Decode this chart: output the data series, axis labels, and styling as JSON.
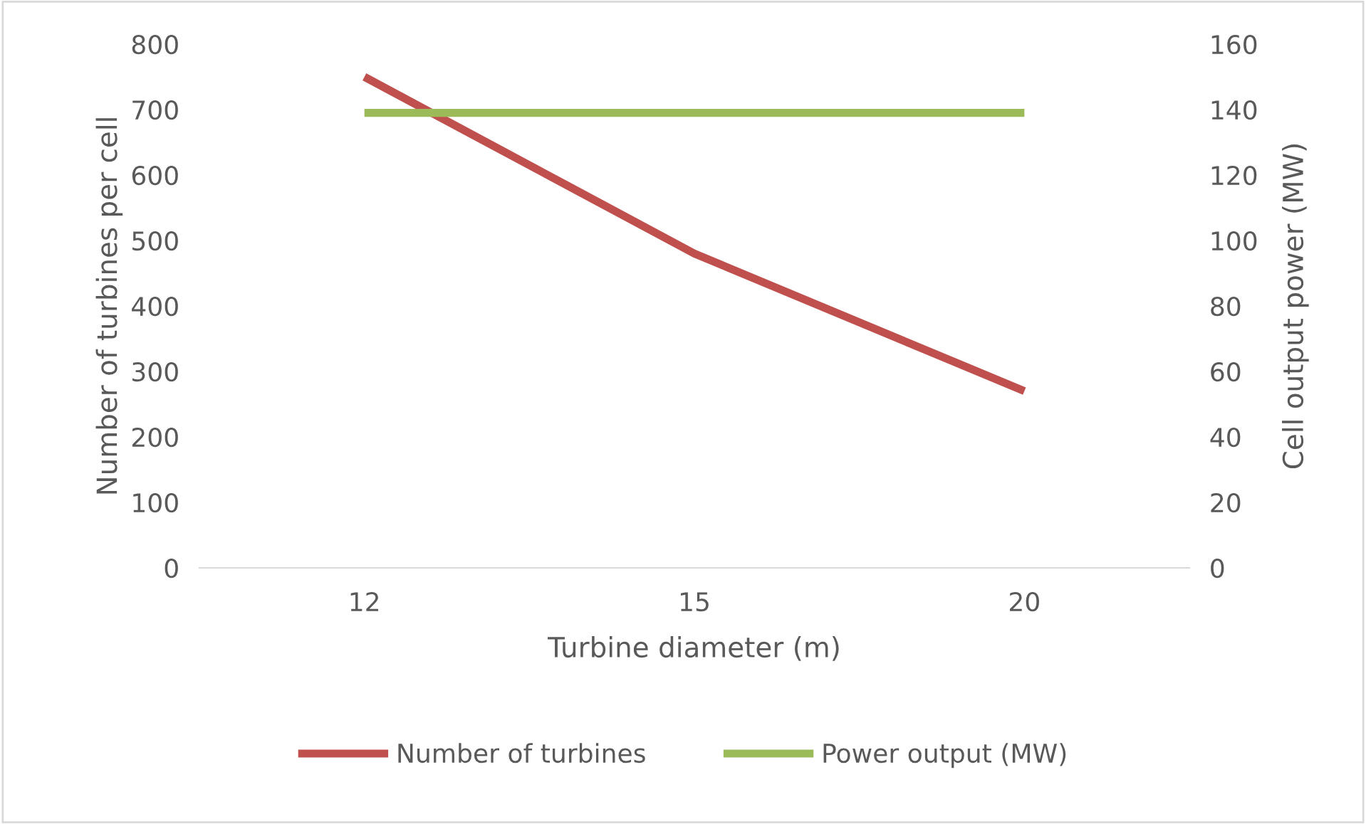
{
  "chart_data": {
    "type": "line",
    "xlabel": "Turbine diameter (m)",
    "ylabel": "Number of turbines per cell",
    "y2label": "Cell output power (MW)",
    "categories": [
      "12",
      "15",
      "20"
    ],
    "series": [
      {
        "name": "Number of turbines",
        "color": "#c0504d",
        "values": [
          750,
          480,
          270
        ]
      },
      {
        "name": "Power output (MW)",
        "color": "#9bbb59",
        "values": [
          139,
          139,
          139
        ],
        "axis": "y2"
      }
    ],
    "ylim": [
      0,
      800
    ],
    "yticks": [
      0,
      100,
      200,
      300,
      400,
      500,
      600,
      700,
      800
    ],
    "y2lim": [
      0,
      160
    ],
    "y2ticks": [
      0,
      20,
      40,
      60,
      80,
      100,
      120,
      140,
      160
    ],
    "grid": false,
    "legend": "bottom",
    "marker": "none",
    "line_style": "solid"
  }
}
